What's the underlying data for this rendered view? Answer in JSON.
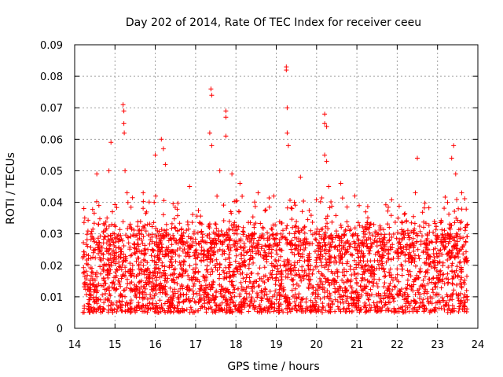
{
  "chart_data": {
    "type": "scatter",
    "title": "Day 202 of 2014, Rate Of TEC Index for receiver ceeu",
    "xlabel": "GPS time / hours",
    "ylabel": "ROTI / TECUs",
    "xlim": [
      14,
      24
    ],
    "ylim": [
      0,
      0.09
    ],
    "xticks": [
      14,
      15,
      16,
      17,
      18,
      19,
      20,
      21,
      22,
      23,
      24
    ],
    "yticks": [
      0,
      0.01,
      0.02,
      0.03,
      0.04,
      0.05,
      0.06,
      0.07,
      0.08,
      0.09
    ],
    "xtick_labels": [
      "14",
      "15",
      "16",
      "17",
      "18",
      "19",
      "20",
      "21",
      "22",
      "23",
      "24"
    ],
    "ytick_labels": [
      "0",
      "0.01",
      "0.02",
      "0.03",
      "0.04",
      "0.05",
      "0.06",
      "0.07",
      "0.08",
      "0.09"
    ],
    "grid": true,
    "marker": "plus",
    "color": "#ff0000",
    "series": [
      {
        "name": "ROTI",
        "x_range": [
          14.2,
          23.75
        ],
        "baseline_range": [
          0.005,
          0.03
        ],
        "notable_points": [
          {
            "x": 14.25,
            "y": 0.035
          },
          {
            "x": 14.55,
            "y": 0.049
          },
          {
            "x": 14.6,
            "y": 0.039
          },
          {
            "x": 14.85,
            "y": 0.05
          },
          {
            "x": 14.9,
            "y": 0.059
          },
          {
            "x": 15.2,
            "y": 0.071
          },
          {
            "x": 15.22,
            "y": 0.069
          },
          {
            "x": 15.22,
            "y": 0.065
          },
          {
            "x": 15.23,
            "y": 0.062
          },
          {
            "x": 15.25,
            "y": 0.05
          },
          {
            "x": 15.3,
            "y": 0.043
          },
          {
            "x": 15.7,
            "y": 0.043
          },
          {
            "x": 16.0,
            "y": 0.055
          },
          {
            "x": 16.15,
            "y": 0.06
          },
          {
            "x": 16.2,
            "y": 0.057
          },
          {
            "x": 16.25,
            "y": 0.052
          },
          {
            "x": 16.85,
            "y": 0.045
          },
          {
            "x": 17.35,
            "y": 0.062
          },
          {
            "x": 17.38,
            "y": 0.076
          },
          {
            "x": 17.4,
            "y": 0.074
          },
          {
            "x": 17.4,
            "y": 0.058
          },
          {
            "x": 17.6,
            "y": 0.05
          },
          {
            "x": 17.75,
            "y": 0.069
          },
          {
            "x": 17.75,
            "y": 0.067
          },
          {
            "x": 17.75,
            "y": 0.061
          },
          {
            "x": 17.9,
            "y": 0.049
          },
          {
            "x": 18.1,
            "y": 0.046
          },
          {
            "x": 18.55,
            "y": 0.043
          },
          {
            "x": 19.25,
            "y": 0.083
          },
          {
            "x": 19.25,
            "y": 0.082
          },
          {
            "x": 19.27,
            "y": 0.07
          },
          {
            "x": 19.27,
            "y": 0.062
          },
          {
            "x": 19.3,
            "y": 0.058
          },
          {
            "x": 19.45,
            "y": 0.04
          },
          {
            "x": 19.6,
            "y": 0.048
          },
          {
            "x": 20.2,
            "y": 0.068
          },
          {
            "x": 20.2,
            "y": 0.065
          },
          {
            "x": 20.25,
            "y": 0.064
          },
          {
            "x": 20.2,
            "y": 0.055
          },
          {
            "x": 20.25,
            "y": 0.053
          },
          {
            "x": 20.3,
            "y": 0.045
          },
          {
            "x": 20.6,
            "y": 0.046
          },
          {
            "x": 20.95,
            "y": 0.042
          },
          {
            "x": 22.45,
            "y": 0.043
          },
          {
            "x": 22.5,
            "y": 0.054
          },
          {
            "x": 23.25,
            "y": 0.04
          },
          {
            "x": 23.35,
            "y": 0.054
          },
          {
            "x": 23.4,
            "y": 0.058
          },
          {
            "x": 23.45,
            "y": 0.049
          },
          {
            "x": 23.6,
            "y": 0.043
          }
        ]
      }
    ]
  }
}
